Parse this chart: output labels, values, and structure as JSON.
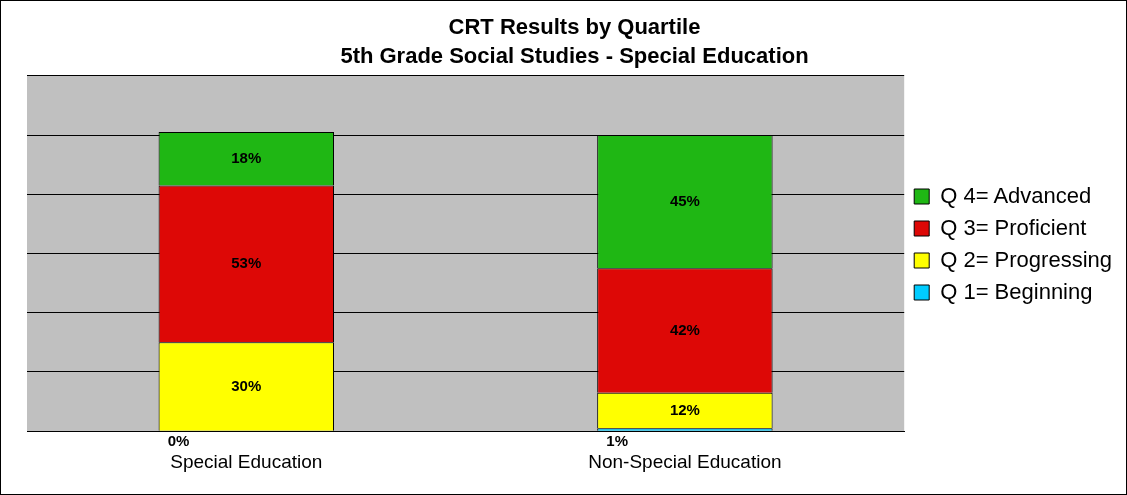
{
  "chart_data": {
    "type": "bar",
    "stacked": true,
    "title": "CRT Results by Quartile",
    "subtitle": "5th Grade Social Studies - Special Education",
    "categories": [
      "Special Education",
      "Non-Special Education"
    ],
    "series": [
      {
        "name": "Q 1= Beginning",
        "color": "#00ccff",
        "values": [
          0,
          1
        ],
        "value_labels": [
          "0%",
          "1%"
        ]
      },
      {
        "name": "Q 2= Progressing",
        "color": "#ffff00",
        "values": [
          30,
          12
        ],
        "value_labels": [
          "30%",
          "12%"
        ]
      },
      {
        "name": "Q 3= Proficient",
        "color": "#dd0806",
        "values": [
          53,
          42
        ],
        "value_labels": [
          "53%",
          "42%"
        ]
      },
      {
        "name": "Q 4= Advanced",
        "color": "#1fb714",
        "values": [
          18,
          45
        ],
        "value_labels": [
          "18%",
          "45%"
        ]
      }
    ],
    "ylim": [
      0,
      120
    ],
    "tick_labels": "x",
    "grid": "y",
    "legend": "right"
  }
}
